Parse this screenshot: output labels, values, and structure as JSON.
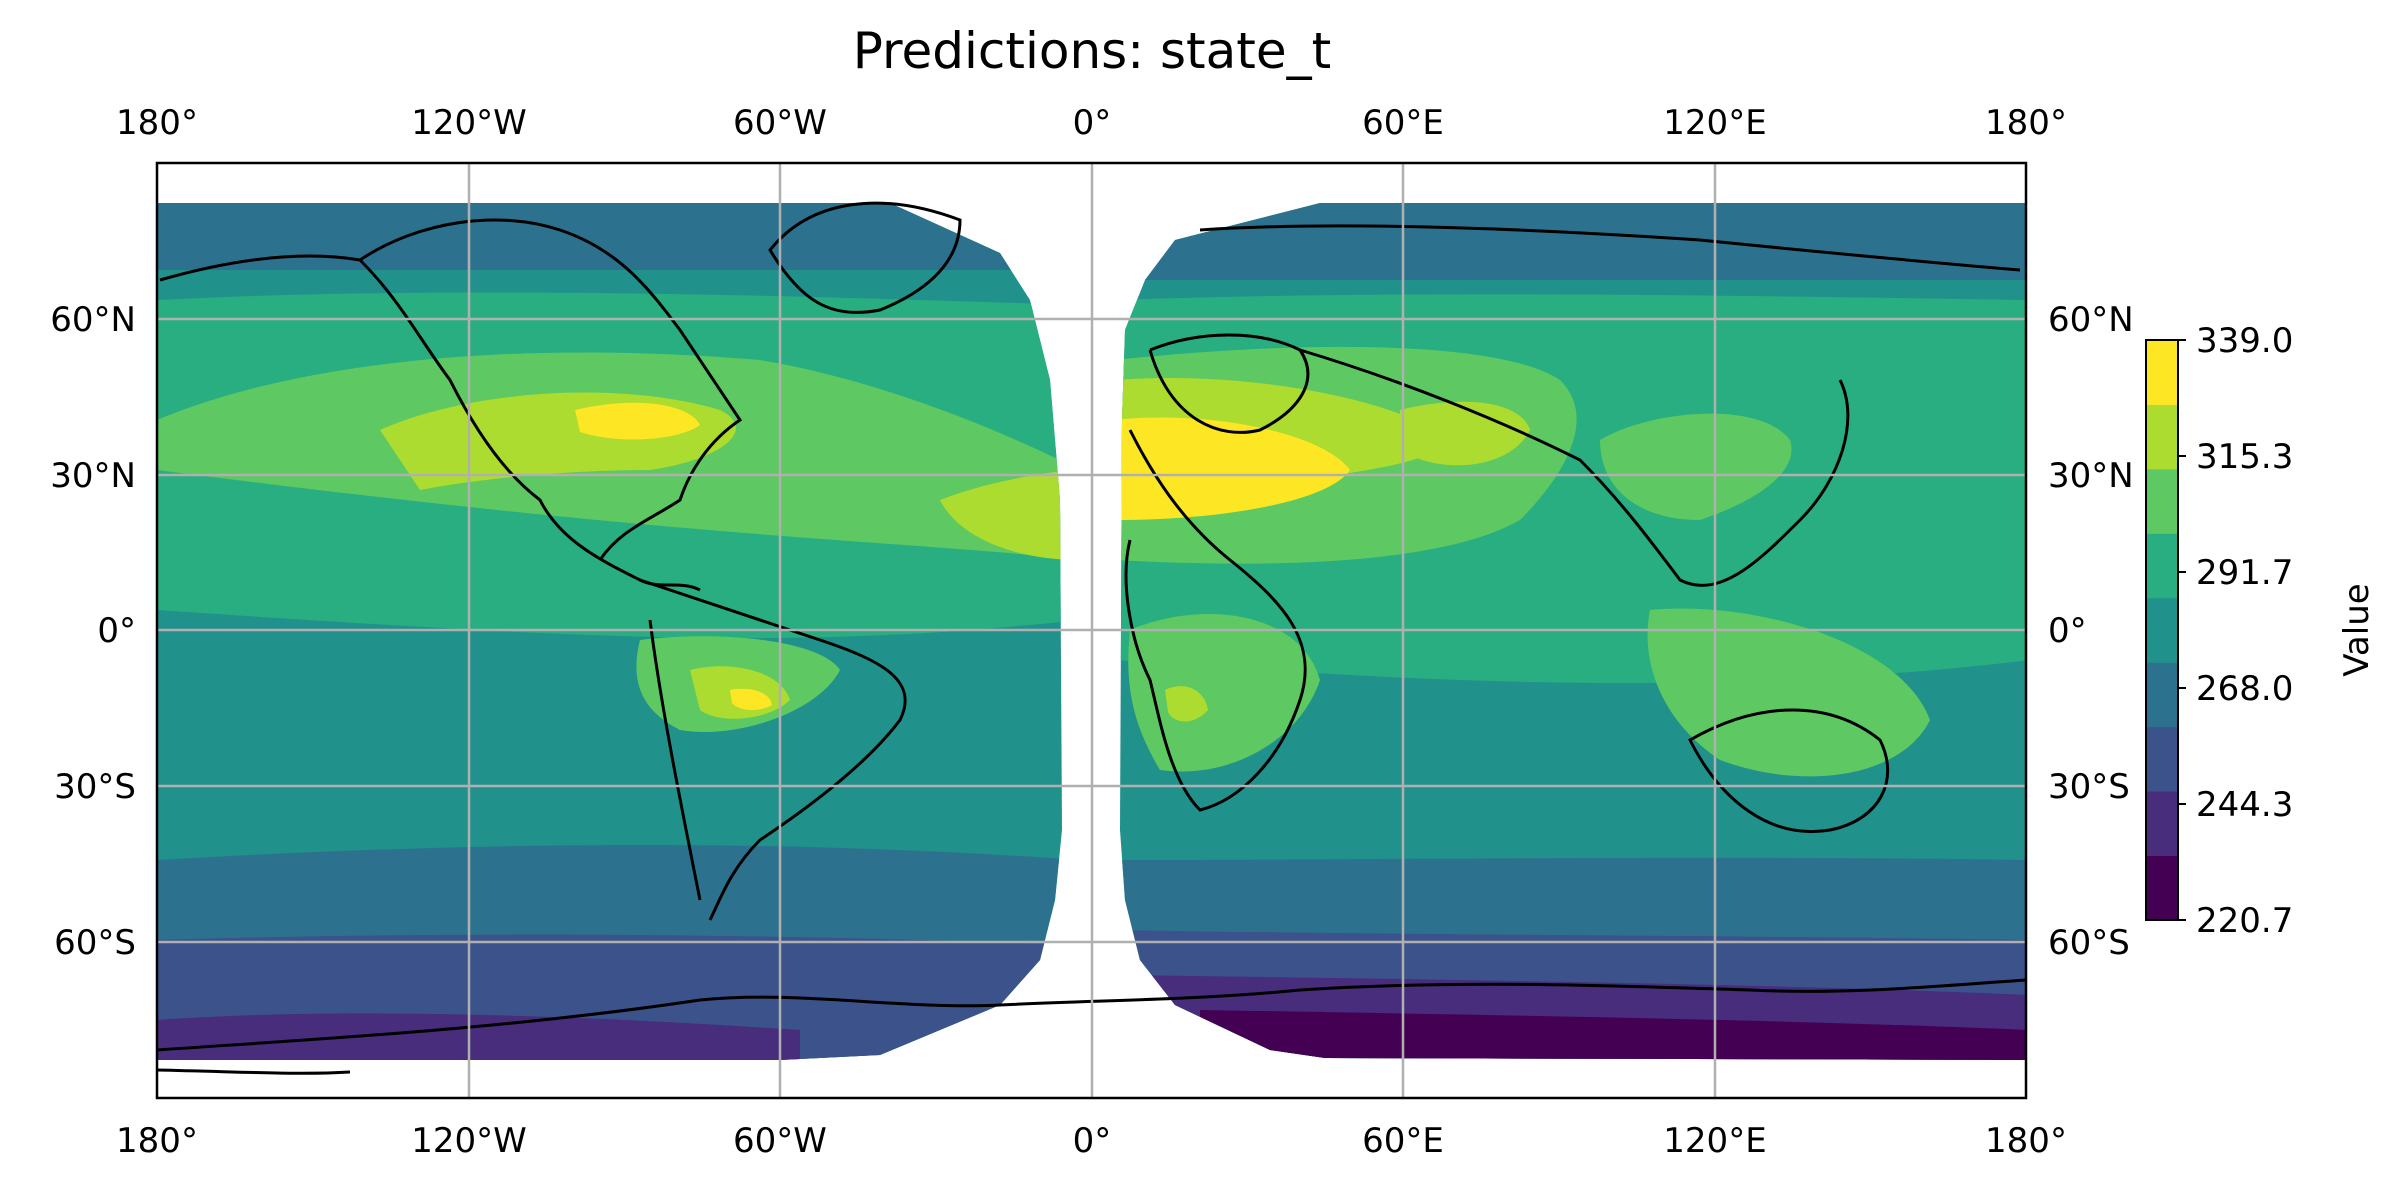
{
  "title": "Predictions: state_t",
  "x_tick_labels": [
    "180°",
    "120°W",
    "60°W",
    "0°",
    "60°E",
    "120°E",
    "180°"
  ],
  "y_tick_labels": [
    "60°N",
    "30°N",
    "0°",
    "30°S",
    "60°S"
  ],
  "colorbar": {
    "label": "Value",
    "tick_labels": [
      "339.0",
      "315.3",
      "291.7",
      "268.0",
      "244.3",
      "220.7"
    ]
  },
  "colors": {
    "levels": [
      "#440154",
      "#472d7b",
      "#3b528b",
      "#2c728e",
      "#21918c",
      "#28ae80",
      "#5ec962",
      "#addc30",
      "#fde725"
    ],
    "grid": "#b0b0b0",
    "coastline": "#000000"
  },
  "chart_data": {
    "type": "heatmap",
    "projection": "PlateCarree",
    "xlim": [
      -180,
      180
    ],
    "ylim": [
      -90,
      90
    ],
    "grid": true,
    "colorbar_range": [
      220.7,
      339.0
    ],
    "colorbar_placement": "right"
  }
}
